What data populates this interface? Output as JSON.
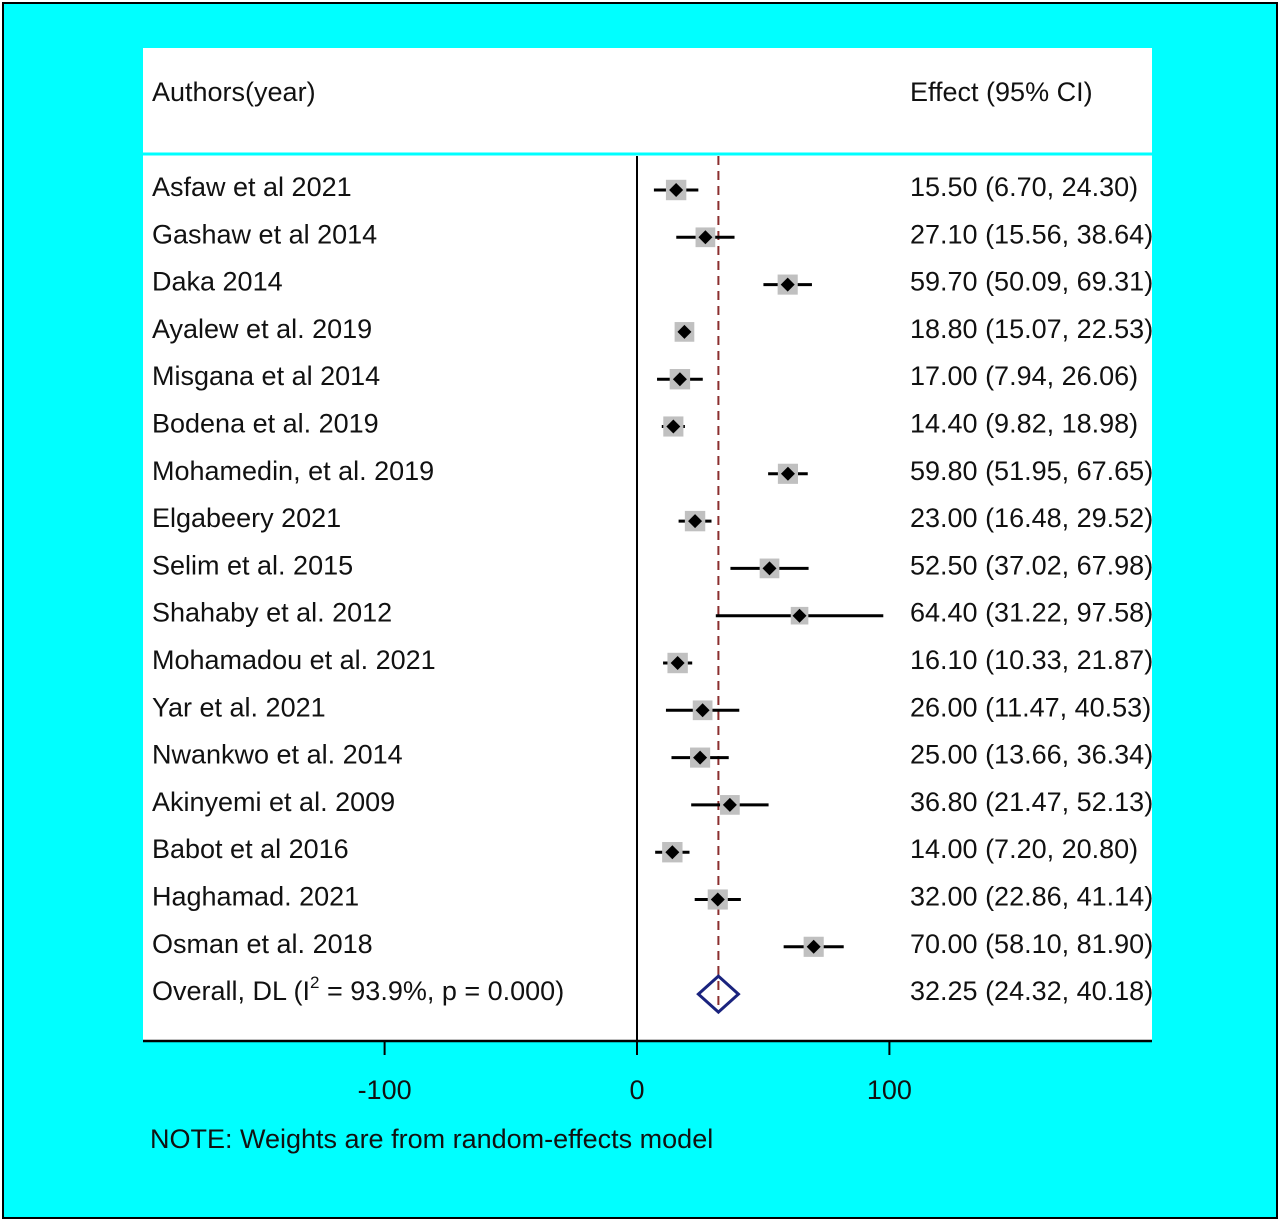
{
  "chart_data": {
    "type": "forest",
    "column_headers": {
      "study": "Authors(year)",
      "effect": "Effect (95% CI)"
    },
    "studies": [
      {
        "label": "Asfaw et al 2021",
        "effect": 15.5,
        "lower": 6.7,
        "upper": 24.3,
        "effect_text": "15.50 (6.70, 24.30)",
        "weight": 0.6
      },
      {
        "label": "Gashaw et al 2014",
        "effect": 27.1,
        "lower": 15.56,
        "upper": 38.64,
        "effect_text": "27.10 (15.56, 38.64)",
        "weight": 0.55
      },
      {
        "label": "Daka 2014",
        "effect": 59.7,
        "lower": 50.09,
        "upper": 69.31,
        "effect_text": "59.70 (50.09, 69.31)",
        "weight": 0.58
      },
      {
        "label": "Ayalew et al.  2019",
        "effect": 18.8,
        "lower": 15.07,
        "upper": 22.53,
        "effect_text": "18.80 (15.07, 22.53)",
        "weight": 0.55
      },
      {
        "label": "Misgana et al  2014",
        "effect": 17.0,
        "lower": 7.94,
        "upper": 26.06,
        "effect_text": "17.00 (7.94, 26.06)",
        "weight": 0.6
      },
      {
        "label": "Bodena et al. 2019",
        "effect": 14.4,
        "lower": 9.82,
        "upper": 18.98,
        "effect_text": "14.40 (9.82, 18.98)",
        "weight": 0.58
      },
      {
        "label": "Mohamedin, et al. 2019",
        "effect": 59.8,
        "lower": 51.95,
        "upper": 67.65,
        "effect_text": "59.80 (51.95, 67.65)",
        "weight": 0.58
      },
      {
        "label": "Elgabeery 2021",
        "effect": 23.0,
        "lower": 16.48,
        "upper": 29.52,
        "effect_text": "23.00 (16.48, 29.52)",
        "weight": 0.6
      },
      {
        "label": "Selim et al. 2015",
        "effect": 52.5,
        "lower": 37.02,
        "upper": 67.98,
        "effect_text": "52.50 (37.02, 67.98)",
        "weight": 0.55
      },
      {
        "label": "Shahaby et al. 2012",
        "effect": 64.4,
        "lower": 31.22,
        "upper": 97.58,
        "effect_text": "64.40 (31.22, 97.58)",
        "weight": 0.4
      },
      {
        "label": "Mohamadou et al. 2021",
        "effect": 16.1,
        "lower": 10.33,
        "upper": 21.87,
        "effect_text": "16.10 (10.33, 21.87)",
        "weight": 0.6
      },
      {
        "label": "Yar et al. 2021",
        "effect": 26.0,
        "lower": 11.47,
        "upper": 40.53,
        "effect_text": "26.00 (11.47, 40.53)",
        "weight": 0.55
      },
      {
        "label": "Nwankwo et al. 2014",
        "effect": 25.0,
        "lower": 13.66,
        "upper": 36.34,
        "effect_text": "25.00 (13.66, 36.34)",
        "weight": 0.58
      },
      {
        "label": "Akinyemi et al. 2009",
        "effect": 36.8,
        "lower": 21.47,
        "upper": 52.13,
        "effect_text": "36.80 (21.47, 52.13)",
        "weight": 0.55
      },
      {
        "label": "Babot et al 2016",
        "effect": 14.0,
        "lower": 7.2,
        "upper": 20.8,
        "effect_text": "14.00 (7.20, 20.80)",
        "weight": 0.6
      },
      {
        "label": "Haghamad. 2021",
        "effect": 32.0,
        "lower": 22.86,
        "upper": 41.14,
        "effect_text": "32.00 (22.86, 41.14)",
        "weight": 0.58
      },
      {
        "label": "Osman et al. 2018",
        "effect": 70.0,
        "lower": 58.1,
        "upper": 81.9,
        "effect_text": "70.00 (58.10, 81.90)",
        "weight": 0.58
      }
    ],
    "overall": {
      "label_prefix": "Overall, DL (I",
      "label_superscript": "2",
      "label_suffix": " = 93.9%, p = 0.000)",
      "effect": 32.25,
      "lower": 24.32,
      "upper": 40.18,
      "effect_text": "32.25 (24.32, 40.18)"
    },
    "x_ticks": [
      -100,
      0,
      100
    ],
    "tick_labels": [
      "-100",
      "0",
      "100"
    ],
    "xlim": [
      -195,
      200
    ],
    "null_line": 0,
    "note": "NOTE: Weights are from random-effects model",
    "colors": {
      "background": "#00ffff",
      "panel": "#ffffff",
      "weight_box": "#c0c0c0",
      "point": "#000000",
      "overall_diamond": "#1a237e",
      "overall_line": "#8b2e2e"
    }
  }
}
